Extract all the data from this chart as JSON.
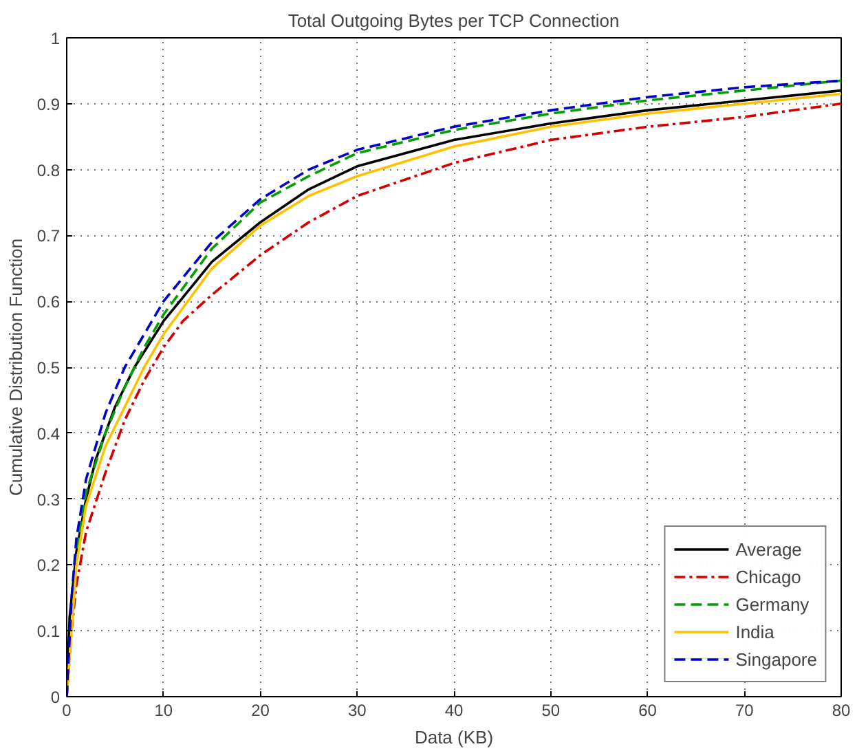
{
  "chart_data": {
    "type": "line",
    "title": "Total Outgoing Bytes per TCP Connection",
    "xlabel": "Data (KB)",
    "ylabel": "Cumulative Distribution Function",
    "xlim": [
      0,
      80
    ],
    "ylim": [
      0,
      1
    ],
    "xticks": [
      0,
      10,
      20,
      30,
      40,
      50,
      60,
      70,
      80
    ],
    "yticks": [
      0,
      0.1,
      0.2,
      0.3,
      0.4,
      0.5,
      0.6,
      0.7,
      0.8,
      0.9,
      1
    ],
    "grid": true,
    "legend": "bottom right",
    "marker": "none",
    "series": [
      {
        "name": "Average",
        "color": "#000000",
        "line_style": "solid",
        "x": [
          0,
          0.3,
          1,
          2,
          3,
          5,
          7,
          10,
          15,
          20,
          25,
          30,
          40,
          50,
          60,
          70,
          80
        ],
        "values": [
          0,
          0.12,
          0.22,
          0.3,
          0.36,
          0.44,
          0.5,
          0.57,
          0.66,
          0.72,
          0.77,
          0.805,
          0.845,
          0.87,
          0.89,
          0.905,
          0.92
        ]
      },
      {
        "name": "Chicago",
        "color": "#d40000",
        "line_style": "dashdot",
        "x": [
          0,
          0.5,
          1,
          2,
          4,
          6,
          8,
          10,
          12,
          15,
          20,
          25,
          30,
          40,
          50,
          60,
          70,
          80
        ],
        "values": [
          0,
          0.1,
          0.17,
          0.25,
          0.34,
          0.42,
          0.48,
          0.53,
          0.57,
          0.61,
          0.67,
          0.72,
          0.76,
          0.81,
          0.845,
          0.865,
          0.88,
          0.9
        ]
      },
      {
        "name": "Germany",
        "color": "#00a000",
        "line_style": "dashed",
        "x": [
          0,
          1,
          2,
          4,
          6,
          8,
          10,
          15,
          20,
          25,
          30,
          40,
          50,
          60,
          70,
          80
        ],
        "values": [
          0,
          0.22,
          0.31,
          0.4,
          0.47,
          0.53,
          0.58,
          0.68,
          0.75,
          0.79,
          0.825,
          0.86,
          0.885,
          0.905,
          0.92,
          0.935
        ]
      },
      {
        "name": "India",
        "color": "#ffc000",
        "line_style": "solid",
        "x": [
          0,
          1,
          2,
          4,
          6,
          8,
          10,
          15,
          20,
          25,
          30,
          40,
          50,
          60,
          70,
          80
        ],
        "values": [
          0,
          0.2,
          0.29,
          0.38,
          0.44,
          0.5,
          0.55,
          0.65,
          0.715,
          0.76,
          0.79,
          0.835,
          0.865,
          0.885,
          0.9,
          0.915
        ]
      },
      {
        "name": "Singapore",
        "color": "#0000cc",
        "line_style": "dashed",
        "x": [
          0,
          0.5,
          1,
          2,
          4,
          6,
          8,
          10,
          15,
          20,
          25,
          30,
          40,
          50,
          60,
          70,
          80
        ],
        "values": [
          0,
          0.15,
          0.24,
          0.33,
          0.43,
          0.5,
          0.55,
          0.6,
          0.69,
          0.755,
          0.8,
          0.83,
          0.865,
          0.89,
          0.91,
          0.925,
          0.935
        ]
      }
    ]
  }
}
